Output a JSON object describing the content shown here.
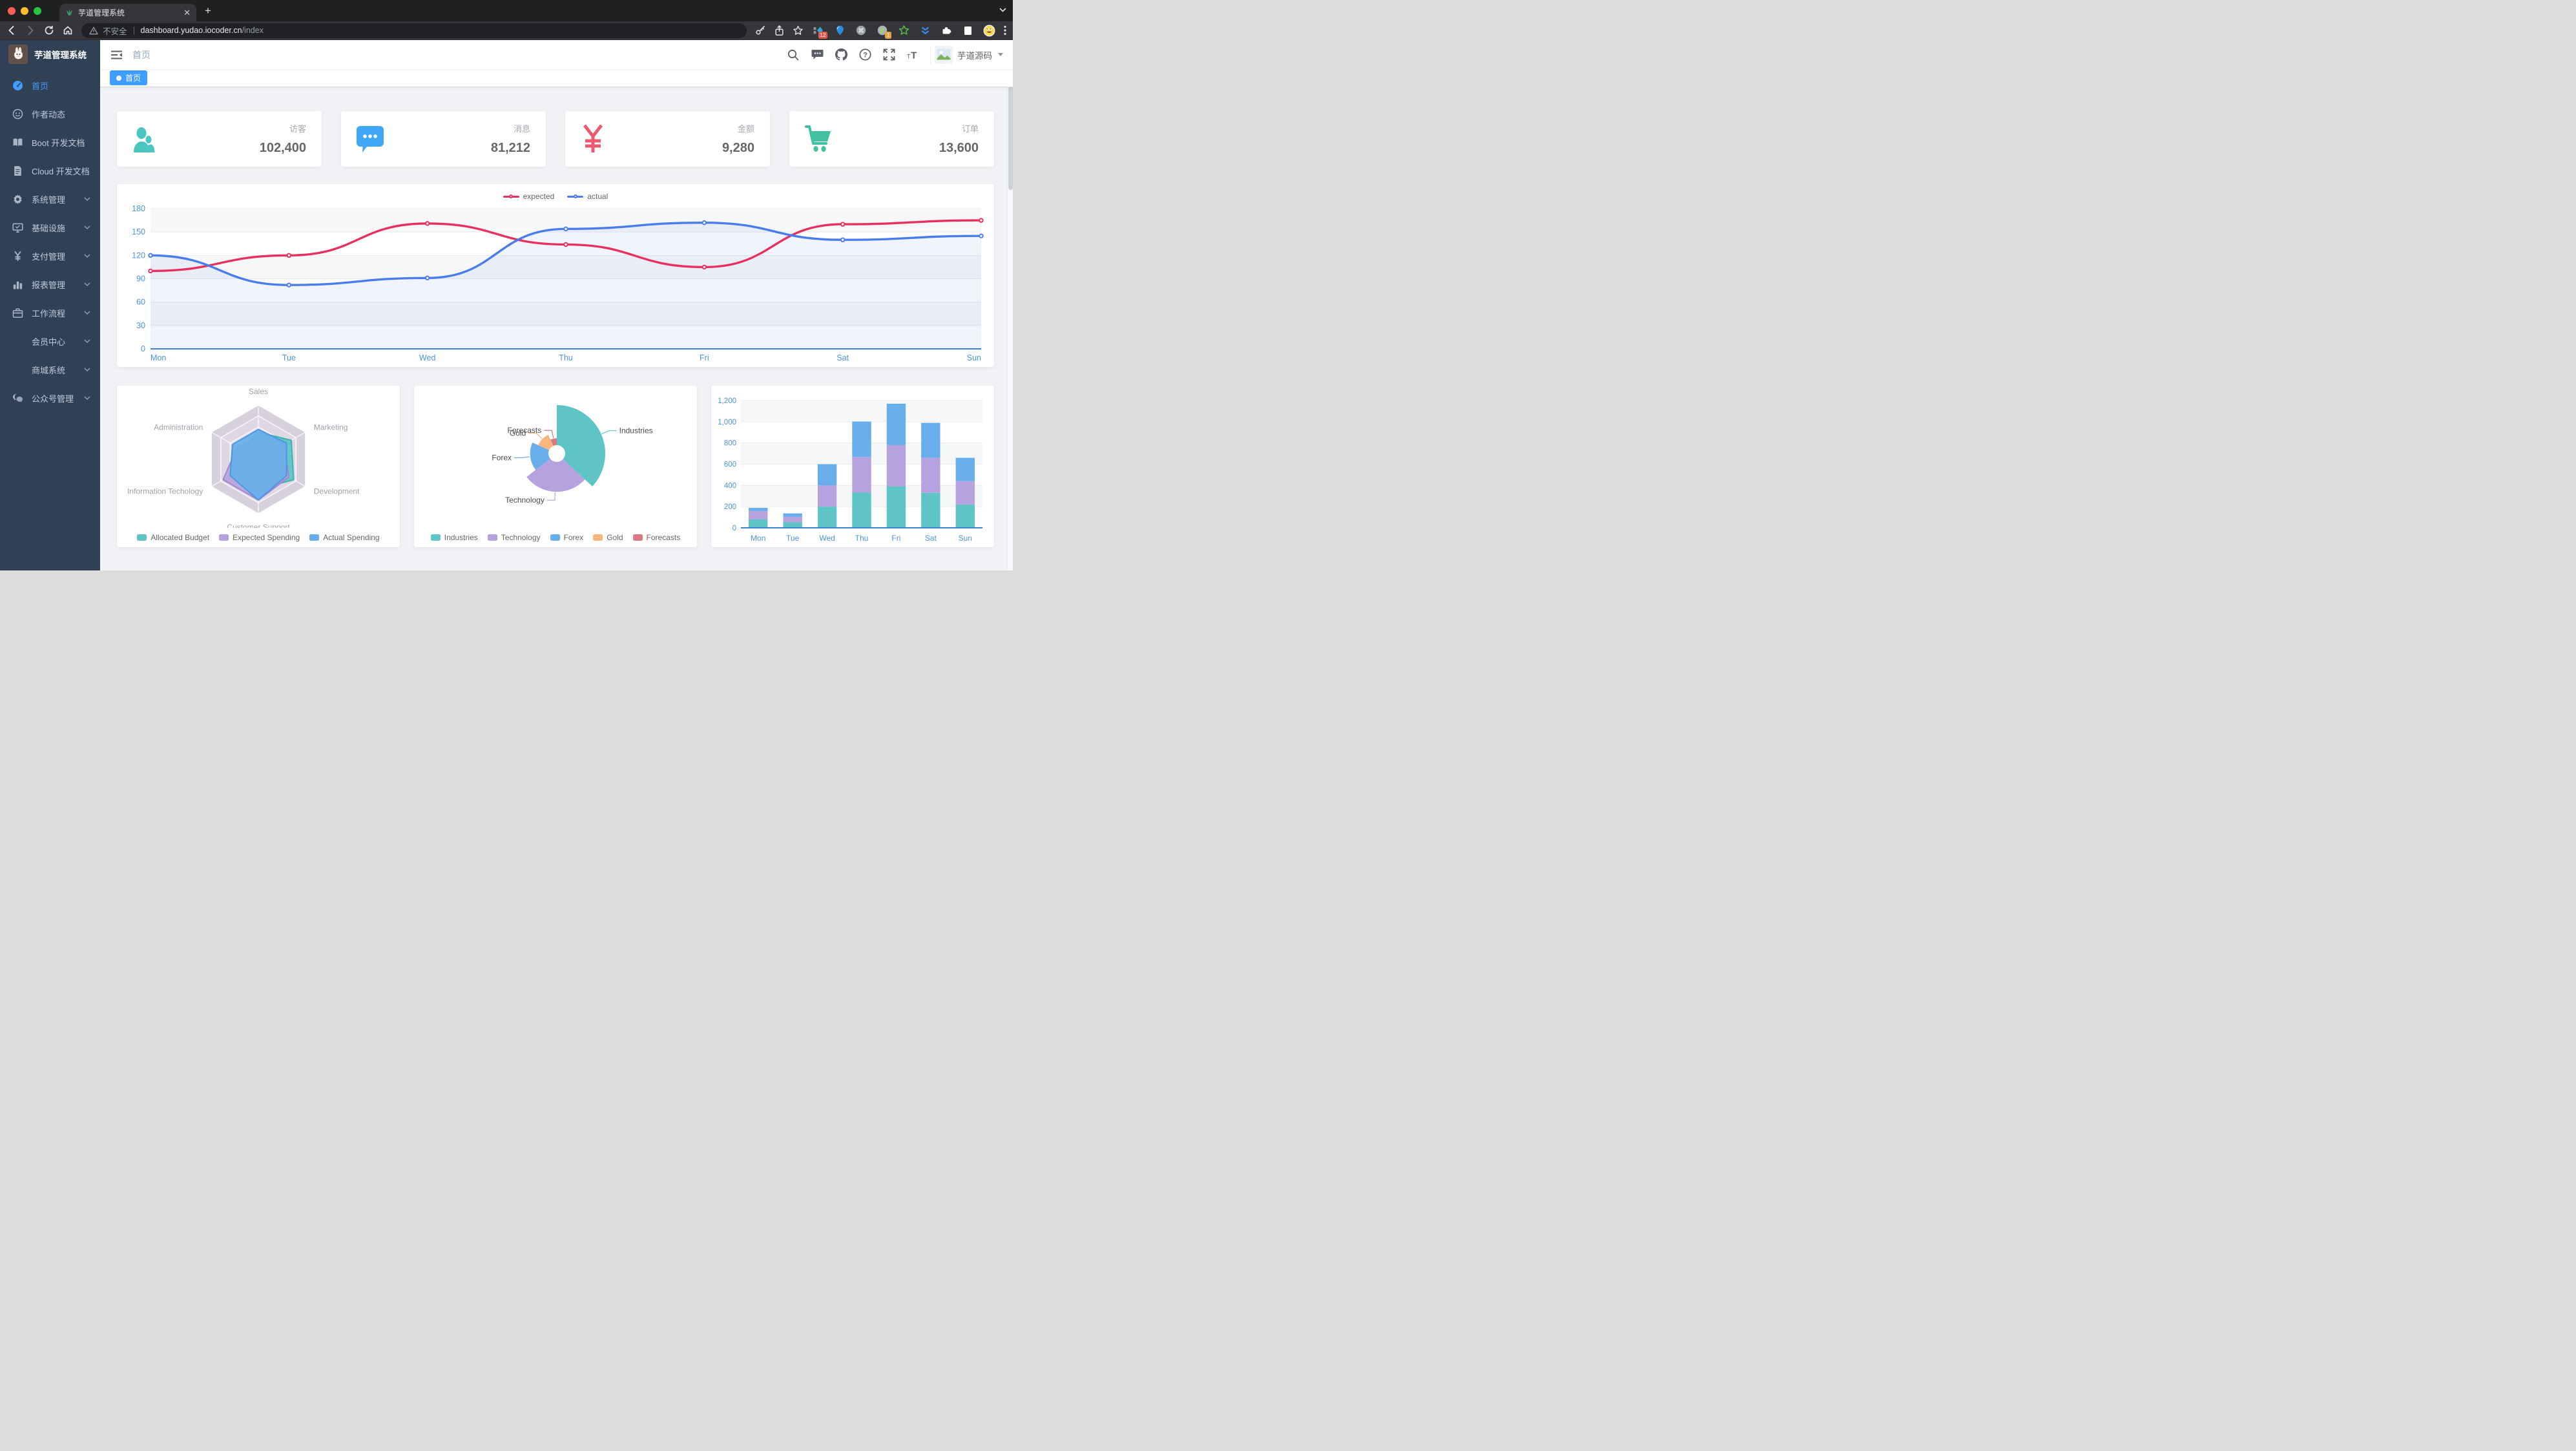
{
  "browser": {
    "tab_title": "芋道管理系统",
    "security_label": "不安全",
    "url_host": "dashboard.yudao.iocoder.cn",
    "url_path": "/index",
    "ext_badge_blue": "12",
    "ext_badge_green": "1"
  },
  "sidebar": {
    "title": "芋道管理系统",
    "items": [
      {
        "key": "home",
        "label": "首页",
        "icon": "dashboard-icon",
        "active": true,
        "arrow": false,
        "indent": false
      },
      {
        "key": "author-news",
        "label": "作者动态",
        "icon": "face-icon",
        "active": false,
        "arrow": false,
        "indent": false
      },
      {
        "key": "boot-docs",
        "label": "Boot 开发文档",
        "icon": "book-icon",
        "active": false,
        "arrow": false,
        "indent": false
      },
      {
        "key": "cloud-docs",
        "label": "Cloud 开发文档",
        "icon": "doc-icon",
        "active": false,
        "arrow": false,
        "indent": false
      },
      {
        "key": "system",
        "label": "系统管理",
        "icon": "gear-icon",
        "active": false,
        "arrow": true,
        "indent": false
      },
      {
        "key": "infra",
        "label": "基础设施",
        "icon": "monitor-icon",
        "active": false,
        "arrow": true,
        "indent": false
      },
      {
        "key": "pay",
        "label": "支付管理",
        "icon": "yen-icon",
        "active": false,
        "arrow": true,
        "indent": false
      },
      {
        "key": "report",
        "label": "报表管理",
        "icon": "bar-chart-icon",
        "active": false,
        "arrow": true,
        "indent": false
      },
      {
        "key": "workflow",
        "label": "工作流程",
        "icon": "briefcase-icon",
        "active": false,
        "arrow": true,
        "indent": false
      },
      {
        "key": "member",
        "label": "会员中心",
        "icon": null,
        "active": false,
        "arrow": true,
        "indent": true
      },
      {
        "key": "mall",
        "label": "商城系统",
        "icon": null,
        "active": false,
        "arrow": true,
        "indent": true
      },
      {
        "key": "mp",
        "label": "公众号管理",
        "icon": "wechat-icon",
        "active": false,
        "arrow": true,
        "indent": false
      }
    ]
  },
  "navbar": {
    "breadcrumb": "首页",
    "username": "芋道源码"
  },
  "tags": {
    "active": "首页"
  },
  "stats": [
    {
      "key": "visitors",
      "label": "访客",
      "value": "102,400",
      "icon": "people-icon",
      "color": "#4ec6c0"
    },
    {
      "key": "messages",
      "label": "消息",
      "value": "81,212",
      "icon": "message-icon",
      "color": "#3fa7f5"
    },
    {
      "key": "amount",
      "label": "金额",
      "value": "9,280",
      "icon": "yuan-icon",
      "color": "#ea5b70"
    },
    {
      "key": "orders",
      "label": "订单",
      "value": "13,600",
      "icon": "cart-icon",
      "color": "#41c1a1"
    }
  ],
  "chart_data": [
    {
      "id": "weekly-line",
      "type": "line",
      "x": [
        "Mon",
        "Tue",
        "Wed",
        "Thu",
        "Fri",
        "Sat",
        "Sun"
      ],
      "series": [
        {
          "name": "expected",
          "color": "#e8305f",
          "values": [
            100,
            120,
            161,
            134,
            105,
            160,
            165
          ]
        },
        {
          "name": "actual",
          "color": "#4a7deb",
          "values": [
            120,
            82,
            91,
            154,
            162,
            140,
            145
          ]
        }
      ],
      "ylim": [
        0,
        180
      ],
      "yticks": [
        0,
        30,
        60,
        90,
        120,
        150,
        180
      ],
      "legend_position": "top",
      "grid": true,
      "axis_label_color": "#4b94dd"
    },
    {
      "id": "budget-radar",
      "type": "radar",
      "indicators": [
        {
          "name": "Sales",
          "max": 10000
        },
        {
          "name": "Administration",
          "max": 20000
        },
        {
          "name": "Information Techology",
          "max": 20000
        },
        {
          "name": "Customer Support",
          "max": 20000
        },
        {
          "name": "Development",
          "max": 20000
        },
        {
          "name": "Marketing",
          "max": 20000
        }
      ],
      "series": [
        {
          "name": "Allocated Budget",
          "color": "#5ec4c6",
          "values": [
            5000,
            7000,
            12000,
            11000,
            15000,
            14000
          ]
        },
        {
          "name": "Expected Spending",
          "color": "#b6a2de",
          "values": [
            4000,
            9000,
            15000,
            15000,
            13000,
            11000
          ]
        },
        {
          "name": "Actual Spending",
          "color": "#68aeea",
          "values": [
            5500,
            11000,
            12000,
            15000,
            12000,
            12000
          ]
        }
      ],
      "legend_position": "bottom"
    },
    {
      "id": "share-pie",
      "type": "pie",
      "rose": true,
      "items": [
        {
          "name": "Industries",
          "value": 320,
          "color": "#5ec4c6"
        },
        {
          "name": "Technology",
          "value": 240,
          "color": "#b6a2de"
        },
        {
          "name": "Forex",
          "value": 149,
          "color": "#68aeea"
        },
        {
          "name": "Gold",
          "value": 100,
          "color": "#f7b77e"
        },
        {
          "name": "Forecasts",
          "value": 59,
          "color": "#d87a80"
        }
      ],
      "legend_position": "bottom"
    },
    {
      "id": "weekly-bar",
      "type": "bar",
      "stacked": true,
      "categories": [
        "Mon",
        "Tue",
        "Wed",
        "Thu",
        "Fri",
        "Sat",
        "Sun"
      ],
      "series": [
        {
          "name": "",
          "color": "#5ec4c6",
          "values": [
            79,
            52,
            200,
            334,
            390,
            330,
            220
          ]
        },
        {
          "name": "",
          "color": "#b6a2de",
          "values": [
            80,
            52,
            200,
            334,
            390,
            330,
            220
          ]
        },
        {
          "name": "",
          "color": "#68aeea",
          "values": [
            30,
            32,
            200,
            334,
            390,
            330,
            220
          ]
        }
      ],
      "ylim": [
        0,
        1200
      ],
      "yticks": [
        0,
        200,
        400,
        600,
        800,
        1000,
        1200
      ],
      "axis_label_color": "#4b94dd"
    }
  ]
}
